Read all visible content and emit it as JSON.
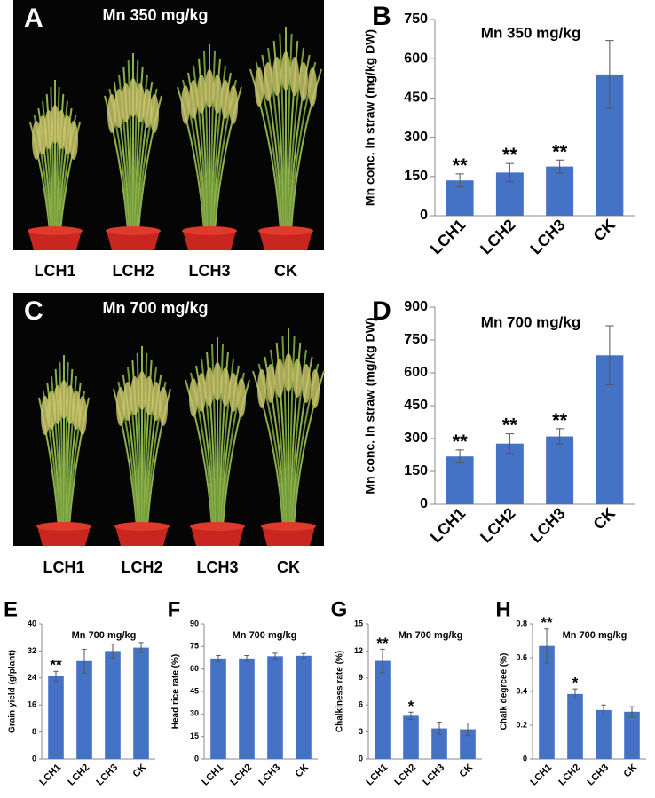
{
  "photos": [
    {
      "panel": "A",
      "title": "Mn 350 mg/kg",
      "labels": [
        "LCH1",
        "LCH2",
        "LCH3",
        "CK"
      ]
    },
    {
      "panel": "C",
      "title": "Mn 700 mg/kg",
      "labels": [
        "LCH1",
        "LCH2",
        "LCH3",
        "CK"
      ]
    }
  ],
  "chart_data": [
    {
      "type": "bar",
      "panel": "B",
      "title": "Mn 350 mg/kg",
      "y_label": "Mn conc. in straw (mg/kg DW)",
      "categories": [
        "LCH1",
        "LCH2",
        "LCH3",
        "CK"
      ],
      "values": [
        135,
        165,
        188,
        540
      ],
      "errors": [
        25,
        35,
        25,
        130
      ],
      "annotations": [
        "**",
        "**",
        "**",
        null
      ],
      "color": "#4472c4",
      "ylim": [
        0,
        750
      ],
      "yticks": [
        0,
        150,
        300,
        450,
        600,
        750
      ]
    },
    {
      "type": "bar",
      "panel": "D",
      "title": "Mn 700 mg/kg",
      "y_label": "Mn conc. in straw (mg/kg DW)",
      "categories": [
        "LCH1",
        "LCH2",
        "LCH3",
        "CK"
      ],
      "values": [
        218,
        277,
        310,
        680
      ],
      "errors": [
        30,
        45,
        35,
        135
      ],
      "annotations": [
        "**",
        "**",
        "**",
        null
      ],
      "color": "#4472c4",
      "ylim": [
        0,
        900
      ],
      "yticks": [
        0,
        150,
        300,
        450,
        600,
        750,
        900
      ]
    },
    {
      "type": "bar",
      "panel": "E",
      "title": "Mn 700 mg/kg",
      "y_label": "Grain yield (g/plant)",
      "categories": [
        "LCH1",
        "LCH2",
        "LCH3",
        "CK"
      ],
      "values": [
        24.5,
        29,
        32,
        33
      ],
      "errors": [
        1.5,
        3.5,
        2,
        1.5
      ],
      "annotations": [
        "**",
        null,
        null,
        null
      ],
      "color": "#4472c4",
      "ylim": [
        0,
        40
      ],
      "yticks": [
        0,
        8,
        16,
        24,
        32,
        40
      ]
    },
    {
      "type": "bar",
      "panel": "F",
      "title": "Mn  700 mg/kg",
      "y_label": "Head rice rate (%)",
      "categories": [
        "LCH1",
        "LCH2",
        "LCH3",
        "CK"
      ],
      "values": [
        67,
        67,
        68.5,
        68.8
      ],
      "errors": [
        2,
        2,
        2,
        1.5
      ],
      "annotations": [
        null,
        null,
        null,
        null
      ],
      "color": "#4472c4",
      "ylim": [
        0,
        90
      ],
      "yticks": [
        0,
        15,
        30,
        45,
        60,
        75,
        90
      ]
    },
    {
      "type": "bar",
      "panel": "G",
      "title": "Mn 700 mg/kg",
      "y_label": "Chalkiness rate (%)",
      "categories": [
        "LCH1",
        "LCH2",
        "LCH3",
        "CK"
      ],
      "values": [
        10.9,
        4.8,
        3.4,
        3.3
      ],
      "errors": [
        1.3,
        0.4,
        0.7,
        0.7
      ],
      "annotations": [
        "**",
        "*",
        null,
        null
      ],
      "color": "#4472c4",
      "ylim": [
        0,
        15
      ],
      "yticks": [
        0,
        3,
        6,
        9,
        12,
        15
      ]
    },
    {
      "type": "bar",
      "panel": "H",
      "title": "Mn 700 mg/kg",
      "y_label": "Chalk degrcee (%)",
      "categories": [
        "LCH1",
        "LCH2",
        "LCH3",
        "CK"
      ],
      "values": [
        0.67,
        0.385,
        0.29,
        0.28
      ],
      "errors": [
        0.1,
        0.03,
        0.03,
        0.03
      ],
      "annotations": [
        "**",
        "*",
        null,
        null
      ],
      "color": "#4472c4",
      "ylim": [
        0,
        0.8
      ],
      "yticks": [
        0,
        0.2,
        0.4,
        0.6,
        0.8
      ]
    }
  ]
}
